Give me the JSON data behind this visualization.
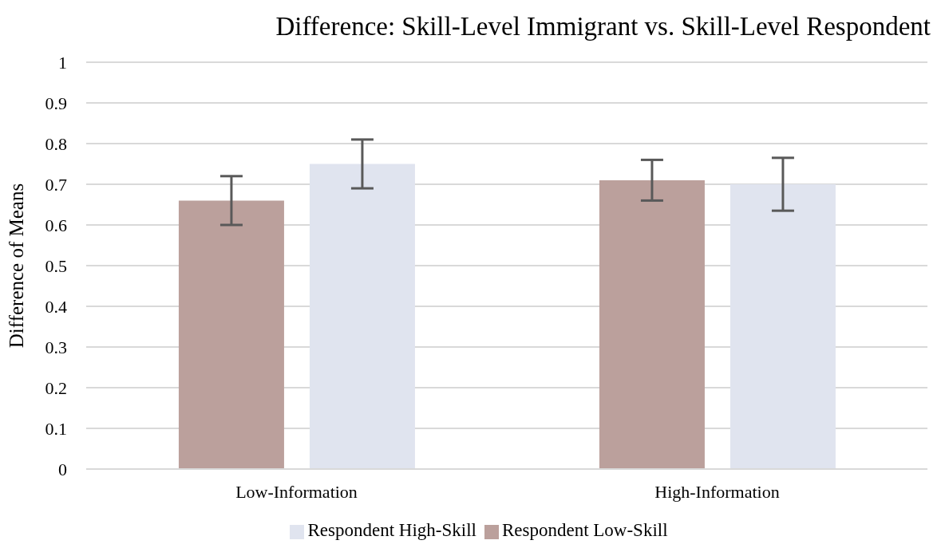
{
  "chart_data": {
    "type": "bar",
    "title": "Difference: Skill-Level Immigrant vs. Skill-Level Respondent",
    "ylabel": "Difference of Means",
    "categories": [
      "Low-Information",
      "High-Information"
    ],
    "series": [
      {
        "name": "Respondent Low-Skill",
        "color": "#bba09c",
        "values": [
          0.66,
          0.71
        ],
        "errors": [
          0.06,
          0.05
        ]
      },
      {
        "name": "Respondent High-Skill",
        "color": "#e0e4ef",
        "values": [
          0.75,
          0.7
        ],
        "errors": [
          0.06,
          0.065
        ]
      }
    ],
    "ylim": [
      0,
      1
    ],
    "yticks": [
      0,
      0.1,
      0.2,
      0.3,
      0.4,
      0.5,
      0.6,
      0.7,
      0.8,
      0.9,
      1
    ],
    "grid": "y",
    "legend": "bottom"
  }
}
